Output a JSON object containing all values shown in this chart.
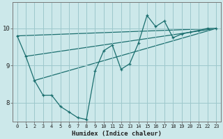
{
  "xlabel": "Humidex (Indice chaleur)",
  "bg_color": "#cce8ea",
  "grid_color": "#9dc8cc",
  "line_color": "#1a6e6e",
  "xlim": [
    -0.5,
    23.5
  ],
  "ylim": [
    7.5,
    10.7
  ],
  "yticks": [
    8,
    9,
    10
  ],
  "xticks": [
    0,
    1,
    2,
    3,
    4,
    5,
    6,
    7,
    8,
    9,
    10,
    11,
    12,
    13,
    14,
    15,
    16,
    17,
    18,
    19,
    20,
    21,
    22,
    23
  ],
  "main_x": [
    0,
    1,
    2,
    3,
    4,
    5,
    6,
    7,
    8,
    9,
    10,
    11,
    12,
    13,
    14,
    15,
    16,
    17,
    18,
    19,
    20,
    21,
    22,
    23
  ],
  "main_y": [
    9.8,
    9.25,
    8.6,
    8.2,
    8.2,
    7.9,
    7.75,
    7.6,
    7.55,
    8.85,
    9.4,
    9.55,
    8.9,
    9.05,
    9.6,
    10.35,
    10.05,
    10.2,
    9.75,
    9.85,
    9.9,
    9.95,
    10.0,
    10.0
  ],
  "trend1_x": [
    0,
    23
  ],
  "trend1_y": [
    9.8,
    10.0
  ],
  "trend2_x": [
    2,
    23
  ],
  "trend2_y": [
    8.6,
    10.0
  ],
  "trend3_x": [
    1,
    23
  ],
  "trend3_y": [
    9.25,
    10.0
  ]
}
